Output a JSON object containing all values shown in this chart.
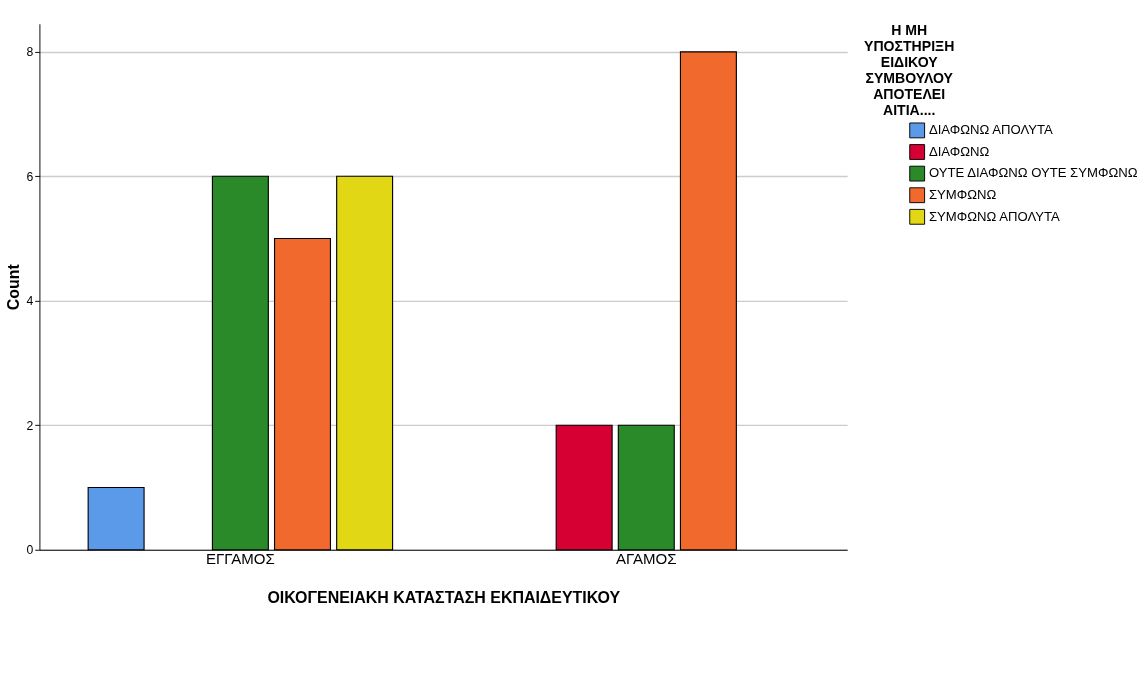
{
  "chart_data": {
    "type": "bar",
    "xlabel": "ΟΙΚΟΓΕΝΕΙΑΚΗ ΚΑΤΑΣΤΑΣΗ ΕΚΠΑΙΔΕΥΤΙΚΟΥ",
    "ylabel": "Count",
    "legend_title": "Η ΜΗ ΥΠΟΣΤΗΡΙΞΗ ΕΙΔΙΚΟΥ ΣΥΜΒΟΥΛΟΥ ΑΠΟΤΕΛΕΙ ΑΙΤΙΑ....",
    "categories": [
      "ΕΓΓΑΜΟΣ",
      "ΑΓΑΜΟΣ"
    ],
    "series": [
      {
        "name": "ΔΙΑΦΩΝΩ ΑΠΟΛΥΤΑ",
        "color": "#5b9ae8",
        "values": [
          1,
          null
        ]
      },
      {
        "name": "ΔΙΑΦΩΝΩ",
        "color": "#d60032",
        "values": [
          null,
          2
        ]
      },
      {
        "name": "ΟΥΤΕ ΔΙΑΦΩΝΩ ΟΥΤΕ ΣΥΜΦΩΝΩ",
        "color": "#2a8a2a",
        "values": [
          6,
          2
        ]
      },
      {
        "name": "ΣΥΜΦΩΝΩ",
        "color": "#f1692d",
        "values": [
          5,
          8
        ]
      },
      {
        "name": "ΣΥΜΦΩΝΩ ΑΠΟΛΥΤΑ",
        "color": "#e1d715",
        "values": [
          6,
          null
        ]
      }
    ],
    "ylim": [
      0,
      8.45
    ],
    "yticks": [
      0,
      2,
      4,
      6,
      8
    ],
    "grid": "y",
    "legend": "right"
  }
}
